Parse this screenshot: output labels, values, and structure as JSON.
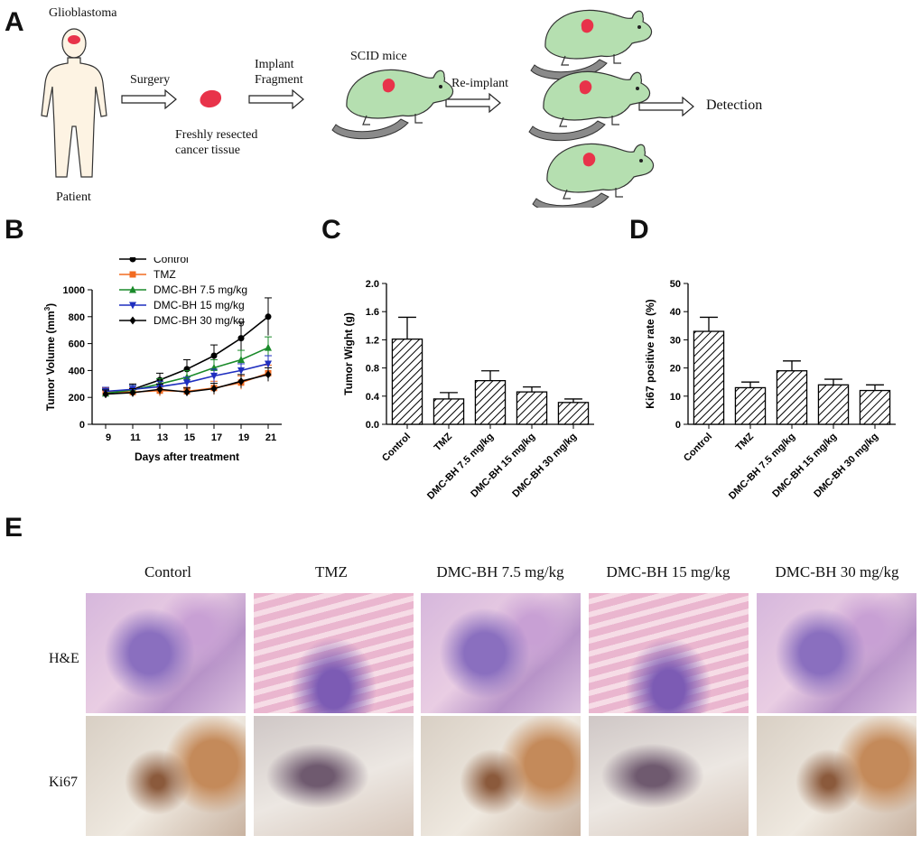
{
  "panels": {
    "A": "A",
    "B": "B",
    "C": "C",
    "D": "D",
    "E": "E"
  },
  "workflow": {
    "glioblastoma": "Glioblastoma",
    "patient": "Patient",
    "surgery": "Surgery",
    "tissue_line1": "Freshly resected",
    "tissue_line2": "cancer tissue",
    "implant_line1": "Implant",
    "implant_line2": "Fragment",
    "scid": "SCID mice",
    "reimplant": "Re-implant",
    "detection": "Detection"
  },
  "colors": {
    "tumor": "#e8334a",
    "mouse_fill": "#b5dfb0",
    "mouse_stroke": "#333333",
    "control": "#000000",
    "tmz": "#f26b21",
    "d75": "#1a8a2a",
    "d15": "#1f2fbf",
    "d30": "#000000"
  },
  "chart_data": [
    {
      "type": "line",
      "panel": "B",
      "xlabel": "Days after treatment",
      "ylabel": "Tumor Volume (mm",
      "ylabel_sup": "3",
      "ylabel_end": ")",
      "x": [
        9,
        11,
        13,
        15,
        17,
        19,
        21
      ],
      "ylim": [
        0,
        1000
      ],
      "yticks": [
        0,
        200,
        400,
        600,
        800,
        1000
      ],
      "legend_position": "top-left",
      "series": [
        {
          "name": "Control",
          "marker": "circle",
          "color": "#000000",
          "values": [
            230,
            260,
            330,
            410,
            510,
            640,
            800
          ],
          "err": [
            30,
            40,
            50,
            70,
            80,
            120,
            140
          ]
        },
        {
          "name": "TMZ",
          "marker": "square",
          "color": "#f26b21",
          "values": [
            240,
            240,
            250,
            245,
            270,
            310,
            380
          ],
          "err": [
            30,
            30,
            40,
            30,
            50,
            50,
            60
          ]
        },
        {
          "name": "DMC-BH 7.5 mg/kg",
          "marker": "triangle-up",
          "color": "#1a8a2a",
          "values": [
            230,
            255,
            300,
            350,
            420,
            480,
            570
          ],
          "err": [
            30,
            35,
            40,
            50,
            60,
            70,
            80
          ]
        },
        {
          "name": "DMC-BH 15 mg/kg",
          "marker": "triangle-down",
          "color": "#1f2fbf",
          "values": [
            245,
            260,
            280,
            310,
            360,
            400,
            450
          ],
          "err": [
            30,
            30,
            40,
            40,
            50,
            50,
            60
          ]
        },
        {
          "name": "DMC-BH 30 mg/kg",
          "marker": "diamond",
          "color": "#000000",
          "values": [
            225,
            235,
            260,
            240,
            265,
            320,
            370
          ],
          "err": [
            30,
            30,
            40,
            30,
            40,
            50,
            50
          ]
        }
      ]
    },
    {
      "type": "bar",
      "panel": "C",
      "ylabel": "Tumor Wight (g)",
      "categories": [
        "Control",
        "TMZ",
        "DMC-BH 7.5 mg/kg",
        "DMC-BH 15 mg/kg",
        "DMC-BH 30 mg/kg"
      ],
      "values": [
        1.21,
        0.36,
        0.62,
        0.46,
        0.31
      ],
      "err": [
        0.31,
        0.09,
        0.14,
        0.07,
        0.05
      ],
      "ylim": [
        0,
        2.0
      ],
      "yticks": [
        "0.0",
        "0.4",
        "0.8",
        "1.2",
        "1.6",
        "2.0"
      ]
    },
    {
      "type": "bar",
      "panel": "D",
      "ylabel": "Ki67 positive rate (%)",
      "categories": [
        "Control",
        "TMZ",
        "DMC-BH 7.5 mg/kg",
        "DMC-BH 15 mg/kg",
        "DMC-BH 30 mg/kg"
      ],
      "values": [
        33,
        13,
        19,
        14,
        12
      ],
      "err": [
        5,
        2,
        3.5,
        2,
        2
      ],
      "ylim": [
        0,
        50
      ],
      "yticks": [
        "0",
        "10",
        "20",
        "30",
        "40",
        "50"
      ]
    }
  ],
  "micrographs": {
    "columns": [
      "Contorl",
      "TMZ",
      "DMC-BH 7.5 mg/kg",
      "DMC-BH 15 mg/kg",
      "DMC-BH 30 mg/kg"
    ],
    "rows": [
      "H&E",
      "Ki67"
    ]
  }
}
